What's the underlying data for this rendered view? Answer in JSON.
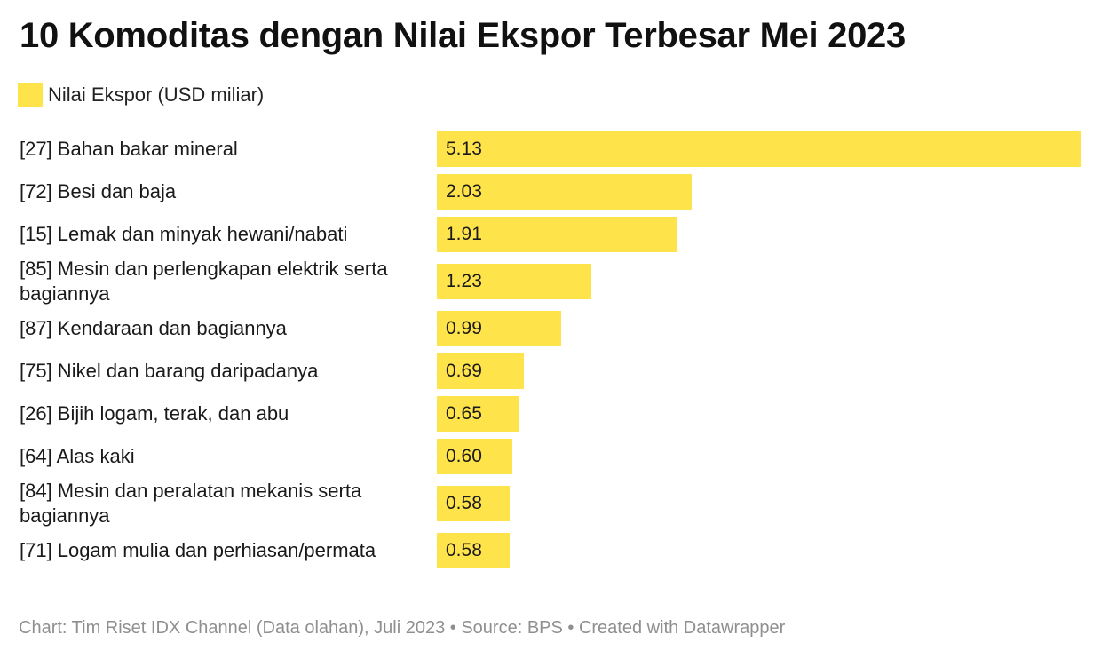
{
  "chart_data": {
    "type": "bar",
    "orientation": "horizontal",
    "title": "10 Komoditas dengan Nilai Ekspor Terbesar Mei 2023",
    "legend": {
      "label": "Nilai Ekspor (USD miliar)",
      "placement": "top-left"
    },
    "categories": [
      "[27] Bahan bakar mineral",
      "[72] Besi dan baja",
      "[15] Lemak dan minyak hewani/nabati",
      "[85] Mesin dan perlengkapan elektrik serta bagiannya",
      "[87] Kendaraan dan bagiannya",
      "[75] Nikel dan barang daripadanya",
      "[26] Bijih logam, terak, dan abu",
      "[64] Alas kaki",
      "[84] Mesin dan peralatan mekanis serta bagiannya",
      "[71] Logam mulia dan perhiasan/permata"
    ],
    "series": [
      {
        "name": "Nilai Ekspor (USD miliar)",
        "values": [
          5.13,
          2.03,
          1.91,
          1.23,
          0.99,
          0.69,
          0.65,
          0.6,
          0.58,
          0.58
        ]
      }
    ],
    "value_labels": [
      "5.13",
      "2.03",
      "1.91",
      "1.23",
      "0.99",
      "0.69",
      "0.65",
      "0.60",
      "0.58",
      "0.58"
    ],
    "xlim": [
      0,
      5.13
    ],
    "grid": false,
    "bar_color": "#ffe34a"
  },
  "footer": "Chart: Tim Riset IDX Channel (Data olahan), Juli 2023 • Source: BPS • Created with Datawrapper"
}
